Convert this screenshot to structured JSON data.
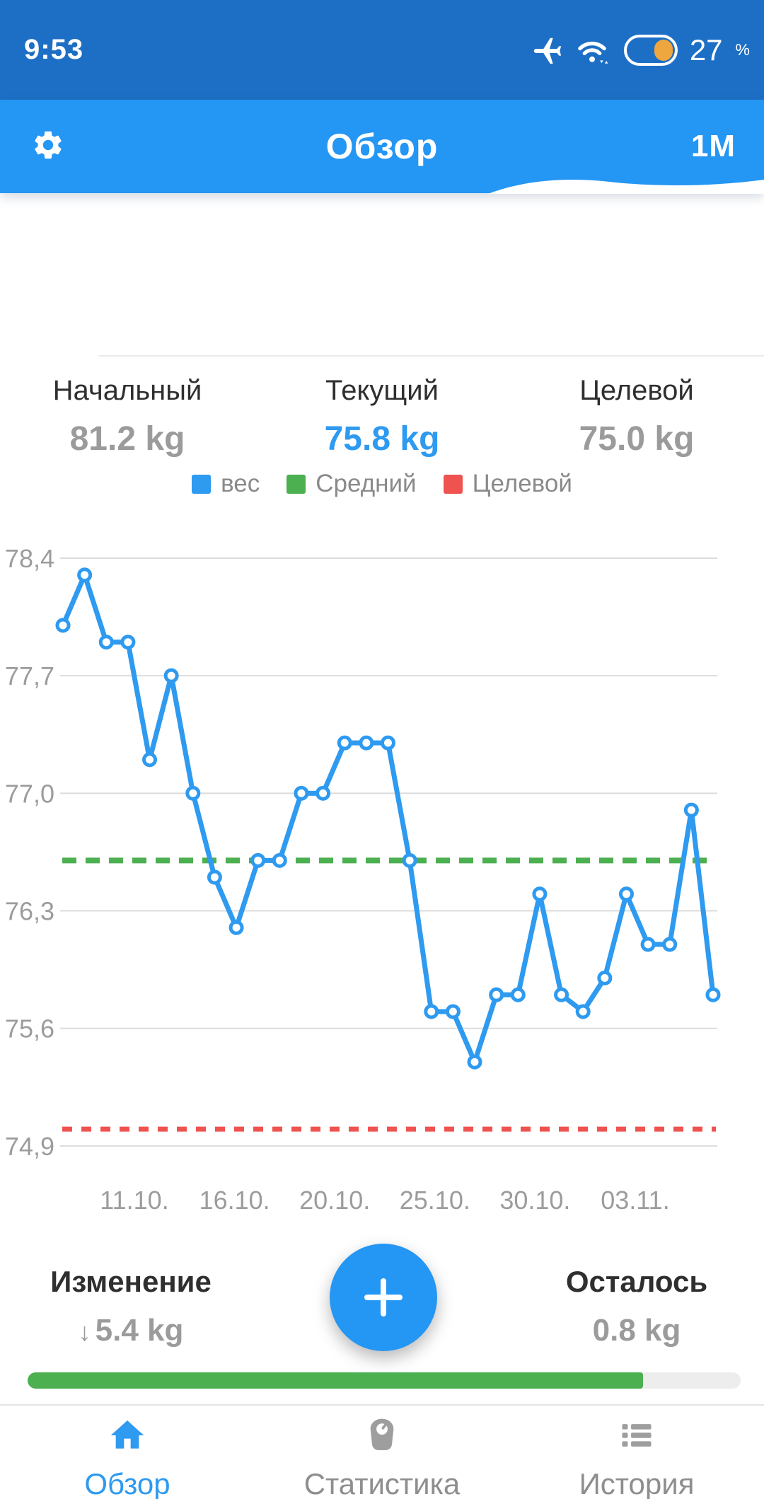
{
  "colors": {
    "accent": "#2496f3",
    "status_bar_bg": "#1d6fc5",
    "weight_line": "#2e9af0",
    "average_line": "#4caf50",
    "target_line": "#ef5350",
    "progress": "#4caf50",
    "battery_fill": "#eea63f"
  },
  "status_bar": {
    "time": "9:53",
    "battery_percent": "27",
    "percent_sign": "%",
    "icons": [
      "airplane-icon",
      "wifi-icon",
      "battery-icon"
    ]
  },
  "app_bar": {
    "title": "Обзор",
    "period": "1M",
    "icons": [
      "gear-icon"
    ]
  },
  "summary": {
    "items": [
      {
        "label": "Начальный",
        "value": "81.2 kg"
      },
      {
        "label": "Текущий",
        "value": "75.8 kg",
        "highlight": true
      },
      {
        "label": "Целевой",
        "value": "75.0 kg"
      }
    ]
  },
  "legend": {
    "items": [
      {
        "label": "вес",
        "color": "#2e9af0"
      },
      {
        "label": "Средний",
        "color": "#4caf50"
      },
      {
        "label": "Целевой",
        "color": "#ef5350"
      }
    ]
  },
  "chart_data": {
    "type": "line",
    "title": "",
    "xlabel": "",
    "ylabel": "",
    "grid": true,
    "legend_position": "top",
    "ylim": [
      74.9,
      78.4
    ],
    "y_ticks": [
      {
        "label": "78,4",
        "value": 78.4
      },
      {
        "label": "77,7",
        "value": 77.7
      },
      {
        "label": "77,0",
        "value": 77.0
      },
      {
        "label": "76,3",
        "value": 76.3
      },
      {
        "label": "75,6",
        "value": 75.6
      },
      {
        "label": "74,9",
        "value": 74.9
      }
    ],
    "x_tick_labels": [
      "11.10.",
      "16.10.",
      "20.10.",
      "25.10.",
      "30.10.",
      "03.11."
    ],
    "series": [
      {
        "name": "вес",
        "type": "line_markers",
        "color": "#2e9af0",
        "values": [
          78.0,
          78.3,
          77.9,
          77.9,
          77.2,
          77.7,
          77.0,
          76.5,
          76.2,
          76.6,
          76.6,
          77.0,
          77.0,
          77.3,
          77.3,
          77.3,
          76.6,
          75.7,
          75.7,
          75.4,
          75.8,
          75.8,
          76.4,
          75.8,
          75.7,
          75.9,
          76.4,
          76.1,
          76.1,
          76.9,
          75.8
        ]
      },
      {
        "name": "Средний",
        "type": "dashed_horizontal",
        "color": "#4caf50",
        "value": 76.6
      },
      {
        "name": "Целевой",
        "type": "dashed_horizontal",
        "color": "#ef5350",
        "value": 75.0
      }
    ]
  },
  "footer": {
    "change_label": "Изменение",
    "change_arrow": "↓",
    "change_value": "5.4 kg",
    "remaining_label": "Осталось",
    "remaining_value": "0.8 kg",
    "progress_percent": 86.3,
    "fab_icon": "plus"
  },
  "bottom_nav": {
    "items": [
      {
        "label": "Обзор",
        "active": true
      },
      {
        "label": "Статистика",
        "active": false
      },
      {
        "label": "История",
        "active": false
      }
    ]
  }
}
